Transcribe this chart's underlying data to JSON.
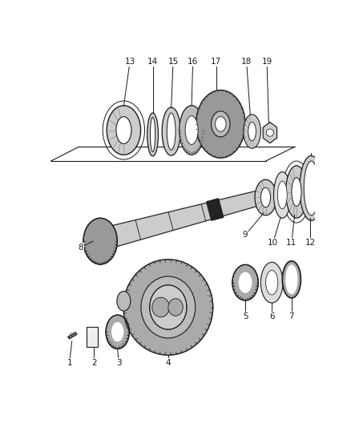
{
  "bg_color": "#ffffff",
  "line_color": "#1a1a1a",
  "fig_width": 4.38,
  "fig_height": 5.33,
  "dpi": 100
}
